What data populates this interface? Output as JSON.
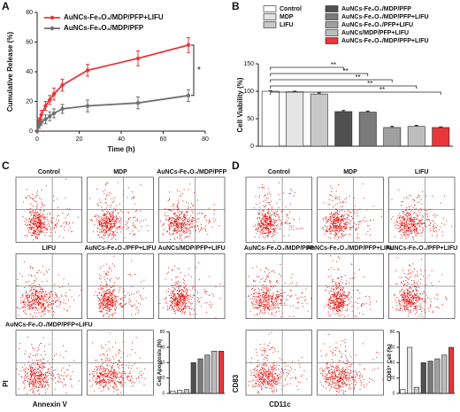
{
  "chart_data": [
    {
      "type": "line",
      "panel_label": "A",
      "xlabel": "Time (h)",
      "ylabel": "Cumulative Release (%)",
      "x": [
        0,
        1,
        2,
        4,
        6,
        8,
        12,
        24,
        48,
        72
      ],
      "series": [
        {
          "name": "AuNCs-Fe₃O₄/MDP/PFP+LIFU",
          "color": "#e8363a",
          "values": [
            0,
            7,
            11,
            17,
            21,
            25,
            31,
            41,
            49,
            58
          ],
          "errors": [
            0,
            2,
            3,
            3,
            3,
            4,
            4,
            4,
            5,
            5
          ]
        },
        {
          "name": "AuNCs-Fe₃O₄/MDP/PFP",
          "color": "#707070",
          "values": [
            0,
            4,
            6,
            8,
            10,
            12,
            15,
            17,
            19,
            24
          ],
          "errors": [
            0,
            2,
            2,
            3,
            3,
            3,
            3,
            4,
            4,
            4
          ]
        }
      ],
      "xlim": [
        0,
        80
      ],
      "xticks": [
        0,
        20,
        40,
        60,
        80
      ],
      "ylim": [
        0,
        80
      ],
      "yticks": [
        0,
        20,
        40,
        60,
        80
      ],
      "annotation": "*"
    },
    {
      "type": "bar",
      "panel_label": "B",
      "ylabel": "Cell Viability (%)",
      "categories": [
        "Control",
        "MDP",
        "LIFU",
        "AuNCs-Fe₃O₄/MDP/PFP",
        "AuNCs-Fe₃O₄/MDP/PFP+LIFU",
        "AuNCs-Fe₃O₄/PFP+LIFU",
        "AuNCs/MDP/PFP+LIFU",
        "AuNCs-Fe₃O₄/MDP/PFP+LIFU"
      ],
      "values": [
        100,
        99,
        95,
        63,
        62,
        34,
        36,
        34
      ],
      "errors": [
        1,
        1,
        2,
        2,
        2,
        2,
        2,
        1
      ],
      "colors": [
        "#ffffff",
        "#e4e4e4",
        "#c8c8c8",
        "#505050",
        "#7a7a7a",
        "#a0a0a0",
        "#bdbdbd",
        "#e8363a"
      ],
      "ylim": [
        0,
        150
      ],
      "yticks": [
        0,
        50,
        100,
        150
      ],
      "annotations": [
        "**",
        "**",
        "**",
        "**",
        "**"
      ]
    },
    {
      "type": "flow",
      "panel_label": "C",
      "xlabel": "Annexin V",
      "ylabel": "PI",
      "panels": [
        "Control",
        "MDP",
        "AuNCs-Fe₃O₄/MDP/PFP",
        "LIFU",
        "AuNCs-Fe₃O₄/PFP+LIFU",
        "AuNCs/MDP/PFP+LIFU",
        "AuNCs-Fe₃O₄/MDP/PFP+LIFU",
        null
      ],
      "inset": {
        "ylabel": "Cell Apoptosis (%)",
        "values": [
          3,
          4,
          5,
          40,
          45,
          50,
          55,
          55
        ],
        "colors": [
          "#ffffff",
          "#e4e4e4",
          "#c8c8c8",
          "#505050",
          "#7a7a7a",
          "#a0a0a0",
          "#bdbdbd",
          "#e8363a"
        ],
        "ylim": [
          0,
          80
        ],
        "yticks": [
          0,
          20,
          40,
          60,
          80
        ]
      }
    },
    {
      "type": "flow",
      "panel_label": "D",
      "xlabel": "CD11c",
      "ylabel": "CD83",
      "panels": [
        "Control",
        "MDP",
        "LIFU",
        "AuNCs-Fe₃O₄/MDP/PFP",
        "AuNCs-Fe₃O₄/MDP/PFP+LIFU",
        "AuNCs-Fe₃O₄/PFP+LIFU",
        null,
        null
      ],
      "inset": {
        "ylabel": "CD83⁺ Cell (%)",
        "values": [
          5,
          60,
          8,
          40,
          42,
          45,
          50,
          60
        ],
        "colors": [
          "#ffffff",
          "#e4e4e4",
          "#c8c8c8",
          "#505050",
          "#7a7a7a",
          "#a0a0a0",
          "#bdbdbd",
          "#e8363a"
        ],
        "ylim": [
          0,
          80
        ],
        "yticks": [
          0,
          20,
          40,
          60,
          80
        ]
      }
    }
  ]
}
